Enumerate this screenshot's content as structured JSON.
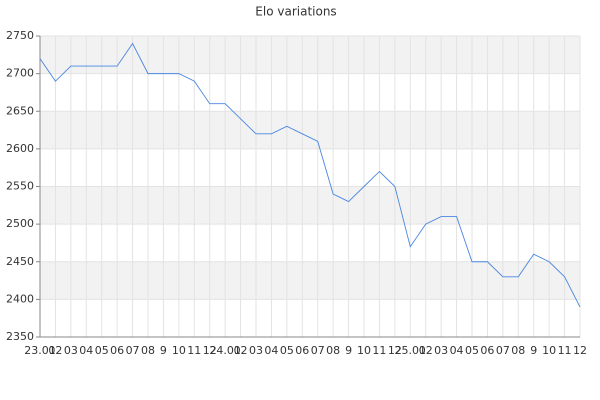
{
  "chart_data": {
    "type": "line",
    "title": "Elo variations",
    "categories": [
      "23.01",
      "02",
      "03",
      "04",
      "05",
      "06",
      "07",
      "08",
      "9",
      "10",
      "11",
      "12",
      "24.01",
      "02",
      "03",
      "04",
      "05",
      "06",
      "07",
      "08",
      "9",
      "10",
      "11",
      "12",
      "25.01",
      "02",
      "03",
      "04",
      "05",
      "06",
      "07",
      "08",
      "9",
      "10",
      "11",
      "12"
    ],
    "series": [
      {
        "name": "Elo",
        "color": "#4a86e0",
        "values": [
          2720,
          2690,
          2710,
          2710,
          2710,
          2710,
          2740,
          2700,
          2700,
          2700,
          2690,
          2660,
          2660,
          2640,
          2620,
          2620,
          2630,
          2620,
          2610,
          2540,
          2530,
          2550,
          2570,
          2550,
          2470,
          2500,
          2510,
          2510,
          2450,
          2450,
          2430,
          2430,
          2460,
          2450,
          2430,
          2390
        ]
      }
    ],
    "ylim": [
      2350,
      2750
    ],
    "yticks": [
      2350,
      2400,
      2450,
      2500,
      2550,
      2600,
      2650,
      2700,
      2750
    ],
    "grid": true,
    "bands": true
  }
}
